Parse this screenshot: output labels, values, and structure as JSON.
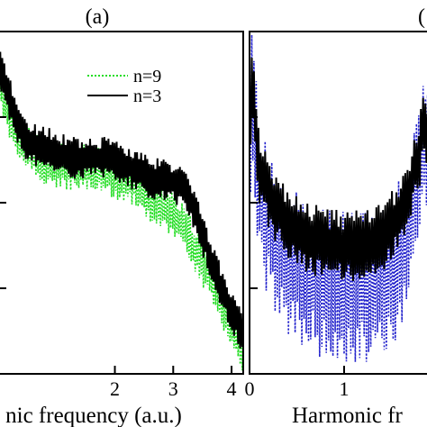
{
  "chart_data": [
    {
      "panel_label": "(a)",
      "type": "line",
      "xlabel": "nic frequency (a.u.)",
      "ylabel": "",
      "xlim": [
        0.0,
        4.2
      ],
      "ylim": [
        0,
        1
      ],
      "x_ticks": [
        {
          "label": "2",
          "value": 2
        },
        {
          "label": "3",
          "value": 3
        },
        {
          "label": "4",
          "value": 4
        }
      ],
      "y_ticks": [],
      "grid": false,
      "legend": "top-right",
      "series": [
        {
          "name": "n=9",
          "color": "#22dd22",
          "dash": "dotted",
          "envelope_x": [
            0.0,
            0.2,
            0.4,
            0.6,
            0.8,
            1.0,
            1.2,
            1.4,
            1.6,
            1.8,
            2.0,
            2.2,
            2.4,
            2.6,
            2.8,
            3.0,
            3.2,
            3.4,
            3.6,
            3.8,
            4.0,
            4.2
          ],
          "envelope_y": [
            0.86,
            0.75,
            0.68,
            0.64,
            0.62,
            0.61,
            0.6,
            0.6,
            0.6,
            0.59,
            0.58,
            0.57,
            0.55,
            0.51,
            0.49,
            0.46,
            0.42,
            0.36,
            0.29,
            0.22,
            0.14,
            0.05
          ],
          "band": 0.1
        },
        {
          "name": "n=3",
          "color": "#000000",
          "dash": "solid",
          "envelope_x": [
            0.0,
            0.2,
            0.4,
            0.6,
            0.8,
            1.0,
            1.2,
            1.4,
            1.6,
            1.8,
            2.0,
            2.2,
            2.4,
            2.6,
            2.8,
            3.0,
            3.2,
            3.4,
            3.6,
            3.8,
            4.0,
            4.2
          ],
          "envelope_y": [
            0.9,
            0.8,
            0.7,
            0.67,
            0.66,
            0.65,
            0.63,
            0.63,
            0.63,
            0.63,
            0.62,
            0.61,
            0.59,
            0.57,
            0.57,
            0.56,
            0.54,
            0.46,
            0.36,
            0.26,
            0.18,
            0.12
          ],
          "band": 0.09
        }
      ]
    },
    {
      "panel_label": "(",
      "type": "line",
      "xlabel": "Harmonic fr",
      "ylabel": "",
      "xlim": [
        0.0,
        2.0
      ],
      "ylim": [
        0,
        1
      ],
      "x_ticks": [
        {
          "label": "0",
          "value": 0
        },
        {
          "label": "1",
          "value": 1
        }
      ],
      "y_ticks": [],
      "grid": false,
      "series": [
        {
          "color": "#2222cc",
          "dash": "dotted",
          "envelope_x": [
            0.0,
            0.02,
            0.1,
            0.25,
            0.4,
            0.6,
            0.8,
            1.0,
            1.2,
            1.4,
            1.55,
            1.7,
            1.8,
            1.85,
            1.9,
            2.0
          ],
          "envelope_y": [
            0.5,
            0.92,
            0.52,
            0.4,
            0.33,
            0.29,
            0.26,
            0.25,
            0.25,
            0.27,
            0.32,
            0.45,
            0.6,
            0.74,
            0.55,
            0.4
          ],
          "band": 0.32
        },
        {
          "color": "#000000",
          "dash": "solid",
          "envelope_x": [
            0.0,
            0.02,
            0.1,
            0.25,
            0.4,
            0.6,
            0.8,
            1.0,
            1.2,
            1.4,
            1.55,
            1.7,
            1.8,
            1.85,
            1.9,
            2.0
          ],
          "envelope_y": [
            0.6,
            0.88,
            0.6,
            0.5,
            0.44,
            0.4,
            0.38,
            0.37,
            0.38,
            0.4,
            0.45,
            0.55,
            0.65,
            0.76,
            0.6,
            0.48
          ],
          "band": 0.15
        }
      ]
    }
  ]
}
